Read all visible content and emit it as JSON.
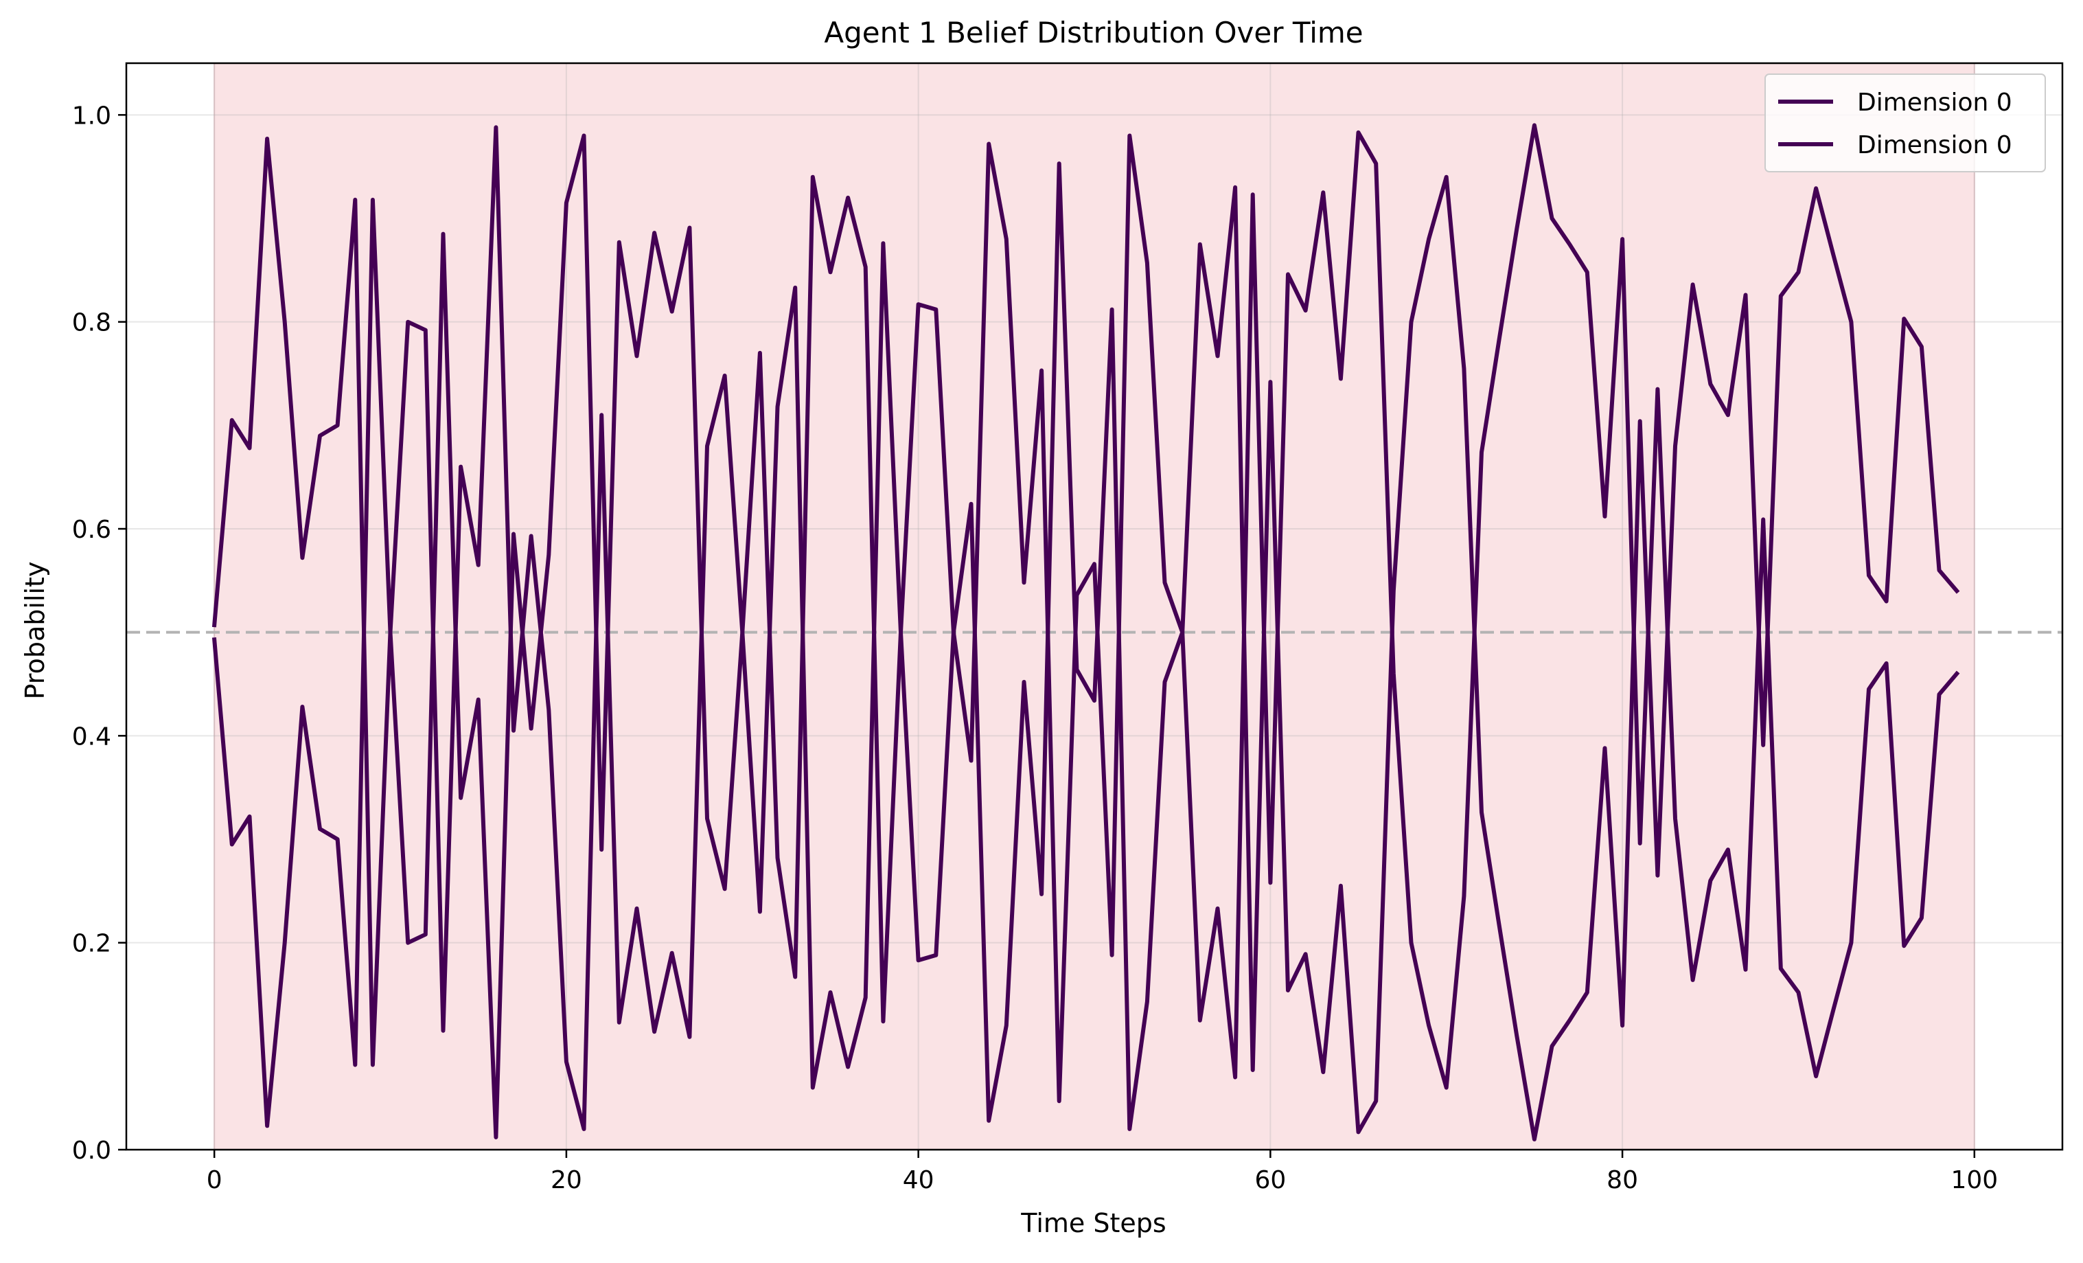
{
  "chart_data": {
    "type": "line",
    "title": "Agent 1 Belief Distribution Over Time",
    "xlabel": "Time Steps",
    "ylabel": "Probability",
    "xlim": [
      -5,
      105
    ],
    "ylim": [
      0.0,
      1.05
    ],
    "xticks": [
      0,
      20,
      40,
      60,
      80,
      100
    ],
    "xtick_labels": [
      "0",
      "20",
      "40",
      "60",
      "80",
      "100"
    ],
    "yticks": [
      0.0,
      0.2,
      0.4,
      0.6,
      0.8,
      1.0
    ],
    "ytick_labels": [
      "0.0",
      "0.2",
      "0.4",
      "0.6",
      "0.8",
      "1.0"
    ],
    "grid": true,
    "legend_position": "top-right",
    "shaded_region": {
      "x_start": 0,
      "x_end": 100,
      "color": "#fae3e5"
    },
    "reference_line": {
      "y": 0.5,
      "style": "dashed",
      "color": "#b3b3b3"
    },
    "series_color": "#440154",
    "x": [
      0,
      1,
      2,
      3,
      4,
      5,
      6,
      7,
      8,
      9,
      10,
      11,
      12,
      13,
      14,
      15,
      16,
      17,
      18,
      19,
      20,
      21,
      22,
      23,
      24,
      25,
      26,
      27,
      28,
      29,
      30,
      31,
      32,
      33,
      34,
      35,
      36,
      37,
      38,
      39,
      40,
      41,
      42,
      43,
      44,
      45,
      46,
      47,
      48,
      49,
      50,
      51,
      52,
      53,
      54,
      55,
      56,
      57,
      58,
      59,
      60,
      61,
      62,
      63,
      64,
      65,
      66,
      67,
      68,
      69,
      70,
      71,
      72,
      73,
      74,
      75,
      76,
      77,
      78,
      79,
      80,
      81,
      82,
      83,
      84,
      85,
      86,
      87,
      88,
      89,
      90,
      91,
      92,
      93,
      94,
      95,
      96,
      97,
      98,
      99
    ],
    "series": [
      {
        "name": "Dimension 0",
        "values": [
          0.507,
          0.705,
          0.678,
          0.977,
          0.8,
          0.572,
          0.69,
          0.7,
          0.918,
          0.082,
          0.5,
          0.8,
          0.792,
          0.115,
          0.66,
          0.565,
          0.988,
          0.405,
          0.593,
          0.425,
          0.085,
          0.02,
          0.71,
          0.123,
          0.233,
          0.114,
          0.19,
          0.109,
          0.68,
          0.748,
          0.5,
          0.77,
          0.282,
          0.167,
          0.94,
          0.848,
          0.92,
          0.853,
          0.124,
          0.5,
          0.817,
          0.812,
          0.5,
          0.376,
          0.972,
          0.88,
          0.548,
          0.753,
          0.047,
          0.536,
          0.566,
          0.188,
          0.98,
          0.857,
          0.548,
          0.5,
          0.875,
          0.767,
          0.93,
          0.077,
          0.742,
          0.154,
          0.189,
          0.075,
          0.255,
          0.017,
          0.047,
          0.54,
          0.8,
          0.88,
          0.94,
          0.755,
          0.326,
          0.217,
          0.11,
          0.01,
          0.1,
          0.125,
          0.152,
          0.388,
          0.12,
          0.704,
          0.265,
          0.68,
          0.836,
          0.74,
          0.71,
          0.826,
          0.391,
          0.825,
          0.848,
          0.929,
          0.864,
          0.8,
          0.555,
          0.53,
          0.803,
          0.776,
          0.56,
          0.54
        ]
      },
      {
        "name": "Dimension 0",
        "values": [
          0.493,
          0.295,
          0.322,
          0.023,
          0.2,
          0.428,
          0.31,
          0.3,
          0.082,
          0.918,
          0.5,
          0.2,
          0.208,
          0.885,
          0.34,
          0.435,
          0.012,
          0.595,
          0.407,
          0.575,
          0.915,
          0.98,
          0.29,
          0.877,
          0.767,
          0.886,
          0.81,
          0.891,
          0.32,
          0.252,
          0.5,
          0.23,
          0.718,
          0.833,
          0.06,
          0.152,
          0.08,
          0.147,
          0.876,
          0.5,
          0.183,
          0.188,
          0.5,
          0.624,
          0.028,
          0.12,
          0.452,
          0.247,
          0.953,
          0.464,
          0.434,
          0.812,
          0.02,
          0.143,
          0.452,
          0.5,
          0.125,
          0.233,
          0.07,
          0.923,
          0.258,
          0.846,
          0.811,
          0.925,
          0.745,
          0.983,
          0.953,
          0.46,
          0.2,
          0.12,
          0.06,
          0.245,
          0.674,
          0.783,
          0.89,
          0.99,
          0.9,
          0.875,
          0.848,
          0.612,
          0.88,
          0.296,
          0.735,
          0.32,
          0.164,
          0.26,
          0.29,
          0.174,
          0.609,
          0.175,
          0.152,
          0.071,
          0.136,
          0.2,
          0.445,
          0.47,
          0.197,
          0.224,
          0.44,
          0.46
        ]
      }
    ]
  }
}
